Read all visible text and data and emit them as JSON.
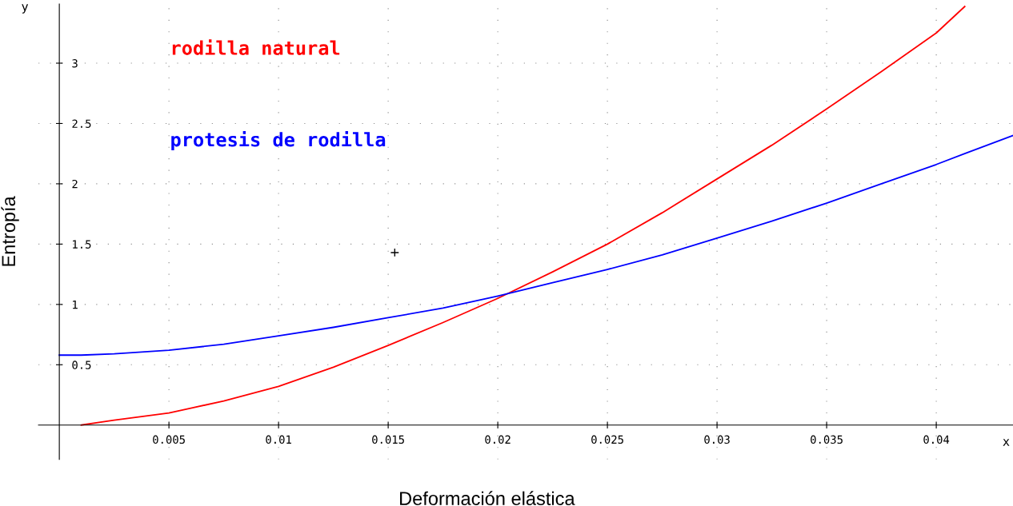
{
  "chart_data": {
    "type": "line",
    "xlabel": "Deformación elástica",
    "ylabel": "Entropía",
    "annotations": [
      "x",
      "y"
    ],
    "x": [
      0,
      0.001,
      0.0025,
      0.005,
      0.0075,
      0.01,
      0.0125,
      0.015,
      0.0175,
      0.02,
      0.0225,
      0.025,
      0.0275,
      0.03,
      0.0325,
      0.035,
      0.0375,
      0.04,
      0.0413,
      0.0435
    ],
    "series": [
      {
        "name": "rodilla natural",
        "color": "#ff0000",
        "values": [
          null,
          0,
          0.04,
          0.1,
          0.2,
          0.32,
          0.48,
          0.66,
          0.85,
          1.05,
          1.27,
          1.5,
          1.76,
          2.04,
          2.32,
          2.62,
          2.93,
          3.25,
          3.47,
          null
        ]
      },
      {
        "name": "protesis de rodilla",
        "color": "#0000ff",
        "values": [
          0.58,
          0.58,
          0.59,
          0.62,
          0.67,
          0.74,
          0.81,
          0.89,
          0.97,
          1.07,
          1.18,
          1.29,
          1.41,
          1.55,
          1.69,
          1.84,
          2.0,
          2.16,
          2.25,
          2.4
        ]
      },
      {
        "type": "scatter",
        "color": "#000000",
        "marker": "cross",
        "x": [
          0.0153
        ],
        "values": [
          1.43
        ]
      }
    ],
    "xlim": [
      -0.00095,
      0.0435
    ],
    "ylim": [
      -0.285,
      3.49
    ],
    "xticks": [
      0.005,
      0.01,
      0.015,
      0.02,
      0.025,
      0.03,
      0.035,
      0.04
    ],
    "yticks": [
      0.5,
      1,
      1.5,
      2,
      2.5,
      3
    ],
    "grid": true
  }
}
